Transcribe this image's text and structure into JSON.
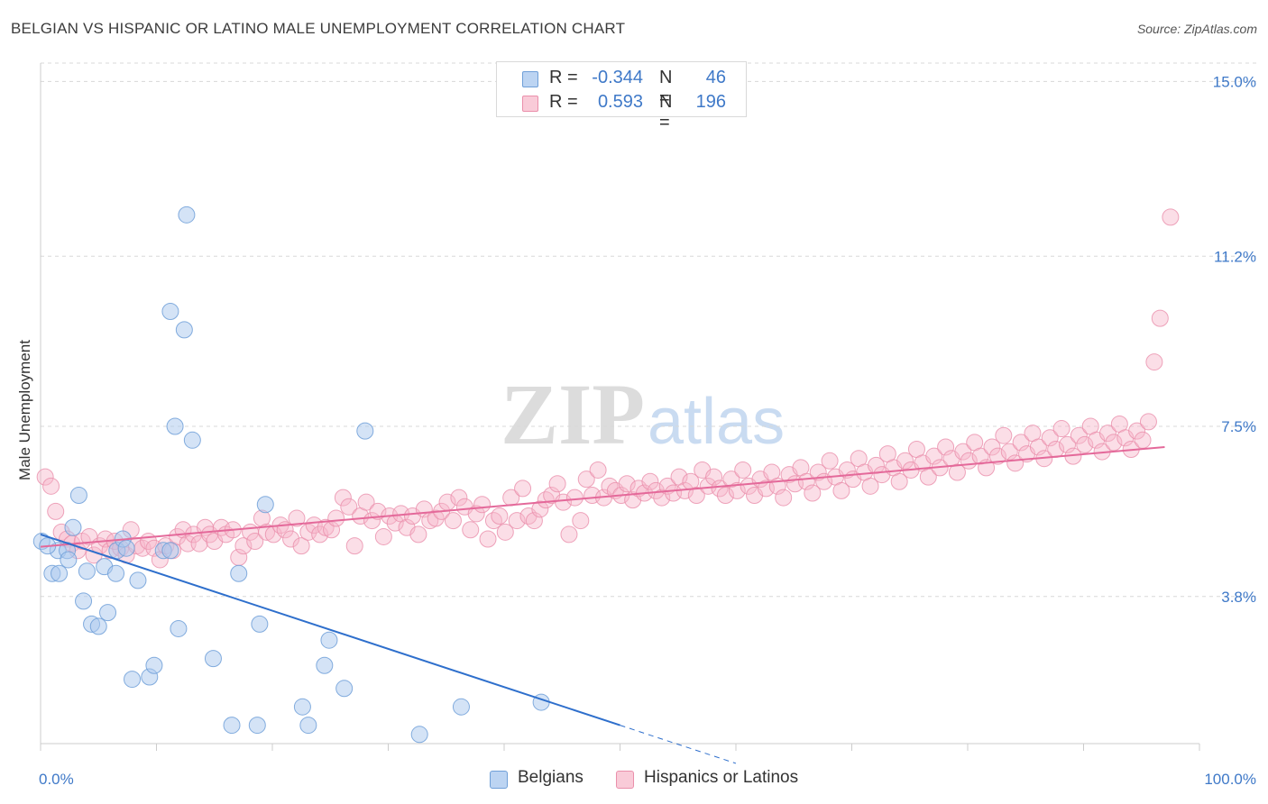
{
  "header": {
    "title": "BELGIAN VS HISPANIC OR LATINO MALE UNEMPLOYMENT CORRELATION CHART",
    "source": "Source: ZipAtlas.com"
  },
  "watermark": {
    "zip": "ZIP",
    "atlas": "atlas"
  },
  "legend": {
    "rows": [
      {
        "r_label": "R =",
        "r_value": "-0.344",
        "n_label": "N =",
        "n_value": "46"
      },
      {
        "r_label": "R =",
        "r_value": "0.593",
        "n_label": "N =",
        "n_value": "196"
      }
    ]
  },
  "bottom_legend": {
    "belgians": "Belgians",
    "hispanics": "Hispanics or Latinos"
  },
  "colors": {
    "belgian_fill": "#a9c7ee",
    "belgian_stroke": "#6f9fd8",
    "belgian_line": "#2e6fcc",
    "hispanic_fill": "#f6b6c9",
    "hispanic_stroke": "#ea8fab",
    "hispanic_line": "#e4699a",
    "axis_text": "#3f79c8",
    "grid": "#d8d8d8"
  },
  "chart_data": {
    "type": "scatter",
    "title": "BELGIAN VS HISPANIC OR LATINO MALE UNEMPLOYMENT CORRELATION CHART",
    "xlabel": "",
    "ylabel": "Male Unemployment",
    "x_tick_labels": [
      "0.0%",
      "100.0%"
    ],
    "y_tick_labels": [
      "3.8%",
      "7.5%",
      "11.2%",
      "15.0%"
    ],
    "y_ticks": [
      3.8,
      7.5,
      11.2,
      15.0
    ],
    "xlim": [
      0,
      100
    ],
    "ylim": [
      0.6,
      15.4
    ],
    "grid": true,
    "legend_position": "top-center",
    "series": [
      {
        "name": "Belgians",
        "r": -0.344,
        "n": 46,
        "trend": {
          "x0": 0,
          "y0": 5.15,
          "x1": 50,
          "y1": 1.0,
          "dashed_to_x": 60
        },
        "points": [
          [
            0.1,
            5.0
          ],
          [
            1.0,
            4.3
          ],
          [
            1.5,
            4.8
          ],
          [
            1.6,
            4.3
          ],
          [
            2.3,
            4.8
          ],
          [
            2.4,
            4.6
          ],
          [
            2.8,
            5.3
          ],
          [
            3.3,
            6.0
          ],
          [
            3.7,
            3.7
          ],
          [
            4.0,
            4.35
          ],
          [
            4.4,
            3.2
          ],
          [
            5.0,
            3.15
          ],
          [
            5.5,
            4.45
          ],
          [
            5.8,
            3.45
          ],
          [
            6.5,
            4.3
          ],
          [
            6.6,
            4.8
          ],
          [
            7.1,
            5.05
          ],
          [
            7.4,
            4.85
          ],
          [
            7.9,
            2.0
          ],
          [
            8.4,
            4.15
          ],
          [
            9.4,
            2.05
          ],
          [
            9.8,
            2.3
          ],
          [
            10.6,
            4.8
          ],
          [
            11.2,
            10.0
          ],
          [
            11.2,
            4.8
          ],
          [
            11.6,
            7.5
          ],
          [
            11.9,
            3.1
          ],
          [
            12.4,
            9.6
          ],
          [
            12.6,
            12.1
          ],
          [
            13.1,
            7.2
          ],
          [
            14.9,
            2.45
          ],
          [
            16.5,
            1.0
          ],
          [
            17.1,
            4.3
          ],
          [
            18.7,
            1.0
          ],
          [
            18.9,
            3.2
          ],
          [
            19.4,
            5.8
          ],
          [
            22.6,
            1.4
          ],
          [
            23.1,
            1.0
          ],
          [
            24.5,
            2.3
          ],
          [
            24.9,
            2.85
          ],
          [
            26.2,
            1.8
          ],
          [
            28.0,
            7.4
          ],
          [
            32.7,
            0.8
          ],
          [
            36.3,
            1.4
          ],
          [
            43.2,
            1.5
          ],
          [
            0.6,
            4.9
          ]
        ]
      },
      {
        "name": "Hispanics or Latinos",
        "r": 0.593,
        "n": 196,
        "trend": {
          "x0": 0,
          "y0": 4.88,
          "x1": 97,
          "y1": 7.05
        },
        "points": [
          [
            0.4,
            6.4
          ],
          [
            0.9,
            6.2
          ],
          [
            1.3,
            5.65
          ],
          [
            1.8,
            5.2
          ],
          [
            2.3,
            5.05
          ],
          [
            2.7,
            4.95
          ],
          [
            3.2,
            4.8
          ],
          [
            3.6,
            5.0
          ],
          [
            4.2,
            5.1
          ],
          [
            4.6,
            4.7
          ],
          [
            5.1,
            4.9
          ],
          [
            5.6,
            5.05
          ],
          [
            6.0,
            4.8
          ],
          [
            6.4,
            5.0
          ],
          [
            6.9,
            4.85
          ],
          [
            7.4,
            4.7
          ],
          [
            7.8,
            5.25
          ],
          [
            8.3,
            4.9
          ],
          [
            8.8,
            4.85
          ],
          [
            9.3,
            5.0
          ],
          [
            9.8,
            4.85
          ],
          [
            10.3,
            4.6
          ],
          [
            10.8,
            4.9
          ],
          [
            11.4,
            4.8
          ],
          [
            11.8,
            5.1
          ],
          [
            12.3,
            5.25
          ],
          [
            12.7,
            4.95
          ],
          [
            13.2,
            5.15
          ],
          [
            13.7,
            4.95
          ],
          [
            14.2,
            5.3
          ],
          [
            14.6,
            5.15
          ],
          [
            15.0,
            5.0
          ],
          [
            15.6,
            5.3
          ],
          [
            16.0,
            5.15
          ],
          [
            16.6,
            5.25
          ],
          [
            17.1,
            4.65
          ],
          [
            17.5,
            4.9
          ],
          [
            18.1,
            5.2
          ],
          [
            18.5,
            5.0
          ],
          [
            19.1,
            5.5
          ],
          [
            19.5,
            5.2
          ],
          [
            20.1,
            5.15
          ],
          [
            20.7,
            5.35
          ],
          [
            21.1,
            5.25
          ],
          [
            21.6,
            5.05
          ],
          [
            22.1,
            5.5
          ],
          [
            22.5,
            4.9
          ],
          [
            23.1,
            5.2
          ],
          [
            23.6,
            5.35
          ],
          [
            24.1,
            5.15
          ],
          [
            24.6,
            5.3
          ],
          [
            25.1,
            5.25
          ],
          [
            25.5,
            5.5
          ],
          [
            26.1,
            5.95
          ],
          [
            26.6,
            5.75
          ],
          [
            27.1,
            4.9
          ],
          [
            27.6,
            5.55
          ],
          [
            28.1,
            5.85
          ],
          [
            28.6,
            5.45
          ],
          [
            29.1,
            5.65
          ],
          [
            29.6,
            5.1
          ],
          [
            30.1,
            5.55
          ],
          [
            30.6,
            5.4
          ],
          [
            31.1,
            5.6
          ],
          [
            31.6,
            5.3
          ],
          [
            32.1,
            5.55
          ],
          [
            32.6,
            5.15
          ],
          [
            33.1,
            5.7
          ],
          [
            33.6,
            5.45
          ],
          [
            34.1,
            5.5
          ],
          [
            34.6,
            5.65
          ],
          [
            35.1,
            5.85
          ],
          [
            35.6,
            5.45
          ],
          [
            36.1,
            5.95
          ],
          [
            36.6,
            5.75
          ],
          [
            37.1,
            5.25
          ],
          [
            37.6,
            5.6
          ],
          [
            38.1,
            5.8
          ],
          [
            38.6,
            5.05
          ],
          [
            39.1,
            5.45
          ],
          [
            39.6,
            5.55
          ],
          [
            40.1,
            5.2
          ],
          [
            40.6,
            5.95
          ],
          [
            41.1,
            5.45
          ],
          [
            41.6,
            6.15
          ],
          [
            42.1,
            5.55
          ],
          [
            42.6,
            5.45
          ],
          [
            43.1,
            5.7
          ],
          [
            43.6,
            5.9
          ],
          [
            44.1,
            6.0
          ],
          [
            44.6,
            6.25
          ],
          [
            45.1,
            5.85
          ],
          [
            45.6,
            5.15
          ],
          [
            46.1,
            5.95
          ],
          [
            46.6,
            5.45
          ],
          [
            47.1,
            6.35
          ],
          [
            47.6,
            6.0
          ],
          [
            48.1,
            6.55
          ],
          [
            48.6,
            5.95
          ],
          [
            49.1,
            6.2
          ],
          [
            49.6,
            6.1
          ],
          [
            50.1,
            6.0
          ],
          [
            50.6,
            6.25
          ],
          [
            51.1,
            5.9
          ],
          [
            51.6,
            6.15
          ],
          [
            52.1,
            6.05
          ],
          [
            52.6,
            6.3
          ],
          [
            53.1,
            6.1
          ],
          [
            53.6,
            5.95
          ],
          [
            54.1,
            6.2
          ],
          [
            54.6,
            6.05
          ],
          [
            55.1,
            6.4
          ],
          [
            55.6,
            6.1
          ],
          [
            56.1,
            6.3
          ],
          [
            56.6,
            6.0
          ],
          [
            57.1,
            6.55
          ],
          [
            57.6,
            6.2
          ],
          [
            58.1,
            6.4
          ],
          [
            58.6,
            6.15
          ],
          [
            59.1,
            6.0
          ],
          [
            59.6,
            6.35
          ],
          [
            60.1,
            6.1
          ],
          [
            60.6,
            6.55
          ],
          [
            61.1,
            6.2
          ],
          [
            61.6,
            6.0
          ],
          [
            62.1,
            6.35
          ],
          [
            62.6,
            6.15
          ],
          [
            63.1,
            6.5
          ],
          [
            63.6,
            6.2
          ],
          [
            64.1,
            5.95
          ],
          [
            64.6,
            6.45
          ],
          [
            65.1,
            6.25
          ],
          [
            65.6,
            6.6
          ],
          [
            66.1,
            6.3
          ],
          [
            66.6,
            6.05
          ],
          [
            67.1,
            6.5
          ],
          [
            67.6,
            6.3
          ],
          [
            68.1,
            6.75
          ],
          [
            68.6,
            6.4
          ],
          [
            69.1,
            6.1
          ],
          [
            69.6,
            6.55
          ],
          [
            70.1,
            6.35
          ],
          [
            70.6,
            6.8
          ],
          [
            71.1,
            6.5
          ],
          [
            71.6,
            6.2
          ],
          [
            72.1,
            6.65
          ],
          [
            72.6,
            6.45
          ],
          [
            73.1,
            6.9
          ],
          [
            73.6,
            6.6
          ],
          [
            74.1,
            6.3
          ],
          [
            74.6,
            6.75
          ],
          [
            75.1,
            6.55
          ],
          [
            75.6,
            7.0
          ],
          [
            76.1,
            6.7
          ],
          [
            76.6,
            6.4
          ],
          [
            77.1,
            6.85
          ],
          [
            77.6,
            6.6
          ],
          [
            78.1,
            7.05
          ],
          [
            78.6,
            6.8
          ],
          [
            79.1,
            6.5
          ],
          [
            79.6,
            6.95
          ],
          [
            80.1,
            6.75
          ],
          [
            80.6,
            7.15
          ],
          [
            81.1,
            6.85
          ],
          [
            81.6,
            6.6
          ],
          [
            82.1,
            7.05
          ],
          [
            82.6,
            6.85
          ],
          [
            83.1,
            7.3
          ],
          [
            83.6,
            6.95
          ],
          [
            84.1,
            6.7
          ],
          [
            84.6,
            7.15
          ],
          [
            85.1,
            6.9
          ],
          [
            85.6,
            7.35
          ],
          [
            86.1,
            7.05
          ],
          [
            86.6,
            6.8
          ],
          [
            87.1,
            7.25
          ],
          [
            87.6,
            7.0
          ],
          [
            88.1,
            7.45
          ],
          [
            88.6,
            7.1
          ],
          [
            89.1,
            6.85
          ],
          [
            89.6,
            7.3
          ],
          [
            90.1,
            7.1
          ],
          [
            90.6,
            7.5
          ],
          [
            91.1,
            7.2
          ],
          [
            91.6,
            6.95
          ],
          [
            92.1,
            7.35
          ],
          [
            92.6,
            7.15
          ],
          [
            93.1,
            7.55
          ],
          [
            93.6,
            7.25
          ],
          [
            94.1,
            7.0
          ],
          [
            94.6,
            7.4
          ],
          [
            95.1,
            7.2
          ],
          [
            95.6,
            7.6
          ],
          [
            96.1,
            8.9
          ],
          [
            96.6,
            9.85
          ],
          [
            97.5,
            12.05
          ]
        ]
      }
    ]
  }
}
